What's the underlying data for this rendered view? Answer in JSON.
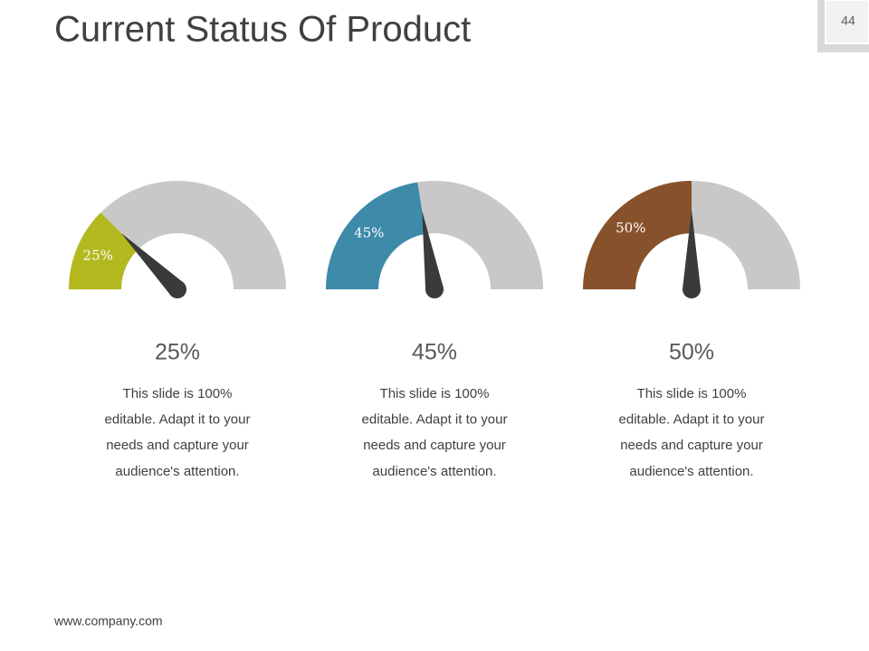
{
  "title": "Current Status Of Product",
  "page_number": "44",
  "footer": "www.company.com",
  "chart_data": [
    {
      "type": "gauge",
      "values": [
        25
      ],
      "value_labels": [
        "25%"
      ],
      "color": "#b3b81f",
      "ylim": [
        0,
        100
      ],
      "description": [
        "This slide is 100%",
        "editable. Adapt it to your",
        "needs and capture your",
        "audience's attention."
      ]
    },
    {
      "type": "gauge",
      "values": [
        45
      ],
      "value_labels": [
        "45%"
      ],
      "color": "#3d8aa9",
      "ylim": [
        0,
        100
      ],
      "description": [
        "This slide is 100%",
        "editable. Adapt it to your",
        "needs and capture your",
        "audience's attention."
      ]
    },
    {
      "type": "gauge",
      "values": [
        50
      ],
      "value_labels": [
        "50%"
      ],
      "color": "#87522b",
      "ylim": [
        0,
        100
      ],
      "description": [
        "This slide is 100%",
        "editable. Adapt it to your",
        "needs and capture your",
        "audience's attention."
      ]
    }
  ]
}
